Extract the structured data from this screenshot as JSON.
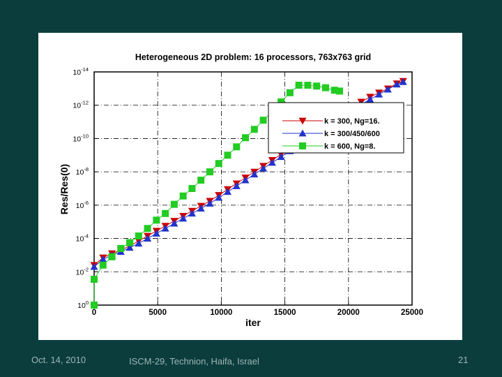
{
  "slide": {
    "footer_date": "Oct. 14, 2010",
    "footer_venue": "ISCM-29, Technion, Haifa, Israel",
    "page_number": "21",
    "background_color": "#0b3d3d"
  },
  "chart_data": {
    "type": "line",
    "title": "Heterogeneous 2D problem:  16 processors, 763x763 grid",
    "xlabel": "iter",
    "ylabel": "Res/Res(0)",
    "xlim": [
      0,
      25000
    ],
    "ylim_log10": [
      -14,
      0
    ],
    "x_ticks": [
      0,
      5000,
      10000,
      15000,
      20000,
      25000
    ],
    "x_tick_labels": [
      "0",
      "5000",
      "10000",
      "15000",
      "20000",
      "25000"
    ],
    "y_ticks_log10": [
      0,
      -2,
      -4,
      -6,
      -8,
      -10,
      -12,
      -14
    ],
    "y_tick_base": "10",
    "y_tick_exponents": [
      "0",
      "-2",
      "-4",
      "-6",
      "-8",
      "-10",
      "-12",
      "-14"
    ],
    "grid": true,
    "legend_position": "top-right",
    "series": [
      {
        "name": "k = 300,  Ng=16.",
        "marker": "triangle-down",
        "color": "#cc0000",
        "x": [
          0,
          700,
          1400,
          2100,
          2800,
          3500,
          4200,
          4900,
          5600,
          6300,
          7000,
          7700,
          8400,
          9100,
          9800,
          10500,
          11200,
          11900,
          12600,
          13300,
          14000,
          14700,
          15400,
          16100,
          16800,
          17500,
          18200,
          18900,
          19600,
          20300,
          21000,
          21700,
          22400,
          23100,
          23800,
          24300
        ],
        "log10_y": [
          -2.4,
          -2.85,
          -3.1,
          -3.3,
          -3.55,
          -3.85,
          -4.15,
          -4.45,
          -4.75,
          -5.05,
          -5.35,
          -5.65,
          -5.95,
          -6.25,
          -6.6,
          -6.95,
          -7.3,
          -7.65,
          -8.0,
          -8.35,
          -8.7,
          -9.05,
          -9.4,
          -9.75,
          -10.1,
          -10.45,
          -10.8,
          -11.15,
          -11.5,
          -11.85,
          -12.2,
          -12.5,
          -12.75,
          -13.0,
          -13.3,
          -13.45
        ]
      },
      {
        "name": "k = 300/450/600",
        "marker": "triangle-up",
        "color": "#2233cc",
        "x": [
          0,
          700,
          1400,
          2100,
          2800,
          3500,
          4200,
          4900,
          5600,
          6300,
          7000,
          7700,
          8400,
          9100,
          9800,
          10500,
          11200,
          11900,
          12600,
          13300,
          14000,
          14700,
          15400,
          16100,
          16800,
          17500,
          18200,
          18900,
          19600,
          20300,
          21000,
          21700,
          22400,
          23100,
          23800,
          24300
        ],
        "log10_y": [
          -2.3,
          -2.75,
          -3.0,
          -3.2,
          -3.45,
          -3.7,
          -4.0,
          -4.3,
          -4.6,
          -4.9,
          -5.2,
          -5.5,
          -5.8,
          -6.1,
          -6.45,
          -6.8,
          -7.15,
          -7.5,
          -7.85,
          -8.2,
          -8.55,
          -8.9,
          -9.25,
          -9.6,
          -9.95,
          -10.3,
          -10.65,
          -11.0,
          -11.35,
          -11.7,
          -12.05,
          -12.35,
          -12.65,
          -12.95,
          -13.25,
          -13.4
        ]
      },
      {
        "name": "k = 600,  Ng=8.",
        "marker": "square",
        "color": "#22cc22",
        "x": [
          0,
          0,
          700,
          1400,
          2100,
          2800,
          3500,
          4200,
          4900,
          5600,
          6300,
          7000,
          7700,
          8400,
          9100,
          9800,
          10500,
          11200,
          11900,
          12600,
          13300,
          14000,
          14700,
          15400,
          16100,
          16800,
          17500,
          18200,
          18900,
          19300
        ],
        "log10_y": [
          0,
          -1.55,
          -2.4,
          -2.9,
          -3.4,
          -3.75,
          -4.15,
          -4.6,
          -5.1,
          -5.5,
          -6.05,
          -6.55,
          -7.0,
          -7.5,
          -8.0,
          -8.5,
          -9.0,
          -9.5,
          -10.05,
          -10.55,
          -11.1,
          -11.6,
          -12.2,
          -12.75,
          -13.2,
          -13.2,
          -13.15,
          -13.05,
          -12.9,
          -12.85
        ]
      }
    ]
  }
}
